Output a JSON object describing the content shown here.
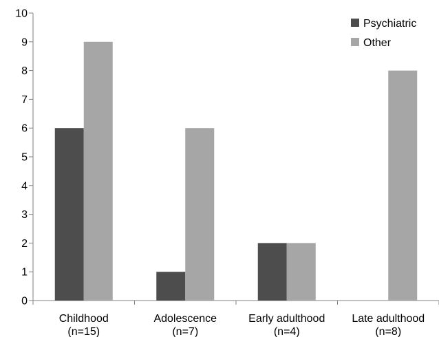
{
  "chart_data": {
    "type": "bar",
    "categories": [
      [
        "Childhood",
        "(n=15)"
      ],
      [
        "Adolescence",
        "(n=7)"
      ],
      [
        "Early adulthood",
        "(n=4)"
      ],
      [
        "Late adulthood",
        "(n=8)"
      ]
    ],
    "series": [
      {
        "name": "Psychiatric",
        "values": [
          6,
          1,
          2,
          0
        ],
        "color": "#4d4d4d"
      },
      {
        "name": "Other",
        "values": [
          9,
          6,
          2,
          8
        ],
        "color": "#a6a6a6"
      }
    ],
    "ylim": [
      0,
      10
    ],
    "yticks": [
      "0",
      "1",
      "2",
      "3",
      "4",
      "5",
      "6",
      "7",
      "8",
      "9",
      "10"
    ],
    "legend_position": "top-right",
    "grid": false
  }
}
